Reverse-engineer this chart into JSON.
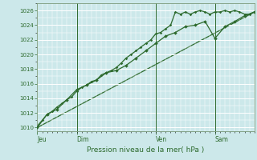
{
  "bg_color": "#cce8ea",
  "grid_color": "#ffffff",
  "line_color": "#2d6a2d",
  "spine_color": "#7a9a7a",
  "ylabel_ticks": [
    1010,
    1012,
    1014,
    1016,
    1018,
    1020,
    1022,
    1024,
    1026
  ],
  "xlabel": "Pression niveau de la mer( hPa )",
  "day_labels": [
    "Jeu",
    "Dim",
    "Ven",
    "Sam"
  ],
  "day_positions": [
    0.0,
    0.182,
    0.545,
    0.818
  ],
  "series1_x": [
    0.0,
    0.023,
    0.045,
    0.068,
    0.091,
    0.114,
    0.136,
    0.159,
    0.182,
    0.205,
    0.227,
    0.25,
    0.273,
    0.295,
    0.318,
    0.341,
    0.364,
    0.386,
    0.409,
    0.432,
    0.455,
    0.477,
    0.5,
    0.523,
    0.545,
    0.568,
    0.591,
    0.614,
    0.636,
    0.659,
    0.682,
    0.705,
    0.727,
    0.75,
    0.773,
    0.795,
    0.818,
    0.841,
    0.864,
    0.886,
    0.909,
    0.932,
    0.955,
    0.977,
    1.0
  ],
  "series1_y": [
    1010.2,
    1011.0,
    1011.8,
    1012.2,
    1012.8,
    1013.3,
    1013.8,
    1014.2,
    1015.0,
    1015.5,
    1015.8,
    1016.3,
    1016.5,
    1017.2,
    1017.5,
    1017.8,
    1018.2,
    1018.8,
    1019.5,
    1020.0,
    1020.5,
    1021.0,
    1021.5,
    1022.0,
    1022.8,
    1023.0,
    1023.5,
    1024.0,
    1025.8,
    1025.5,
    1025.8,
    1025.5,
    1025.8,
    1026.0,
    1025.8,
    1025.5,
    1025.8,
    1025.8,
    1026.0,
    1025.8,
    1026.0,
    1025.8,
    1025.5,
    1025.5,
    1025.8
  ],
  "series2_x": [
    0.0,
    0.045,
    0.091,
    0.136,
    0.182,
    0.227,
    0.273,
    0.318,
    0.364,
    0.409,
    0.455,
    0.5,
    0.545,
    0.591,
    0.636,
    0.682,
    0.727,
    0.773,
    0.818,
    0.864,
    0.909,
    0.955,
    1.0
  ],
  "series2_y": [
    1010.0,
    1011.8,
    1012.5,
    1013.8,
    1015.2,
    1015.8,
    1016.5,
    1017.5,
    1017.8,
    1018.5,
    1019.5,
    1020.5,
    1021.5,
    1022.5,
    1023.0,
    1023.8,
    1024.0,
    1024.5,
    1022.2,
    1023.8,
    1024.5,
    1025.3,
    1025.8
  ],
  "series3_x": [
    0.0,
    1.0
  ],
  "series3_y": [
    1010.0,
    1025.8
  ],
  "ylim": [
    1009.5,
    1027.0
  ],
  "xlim": [
    0.0,
    1.0
  ]
}
